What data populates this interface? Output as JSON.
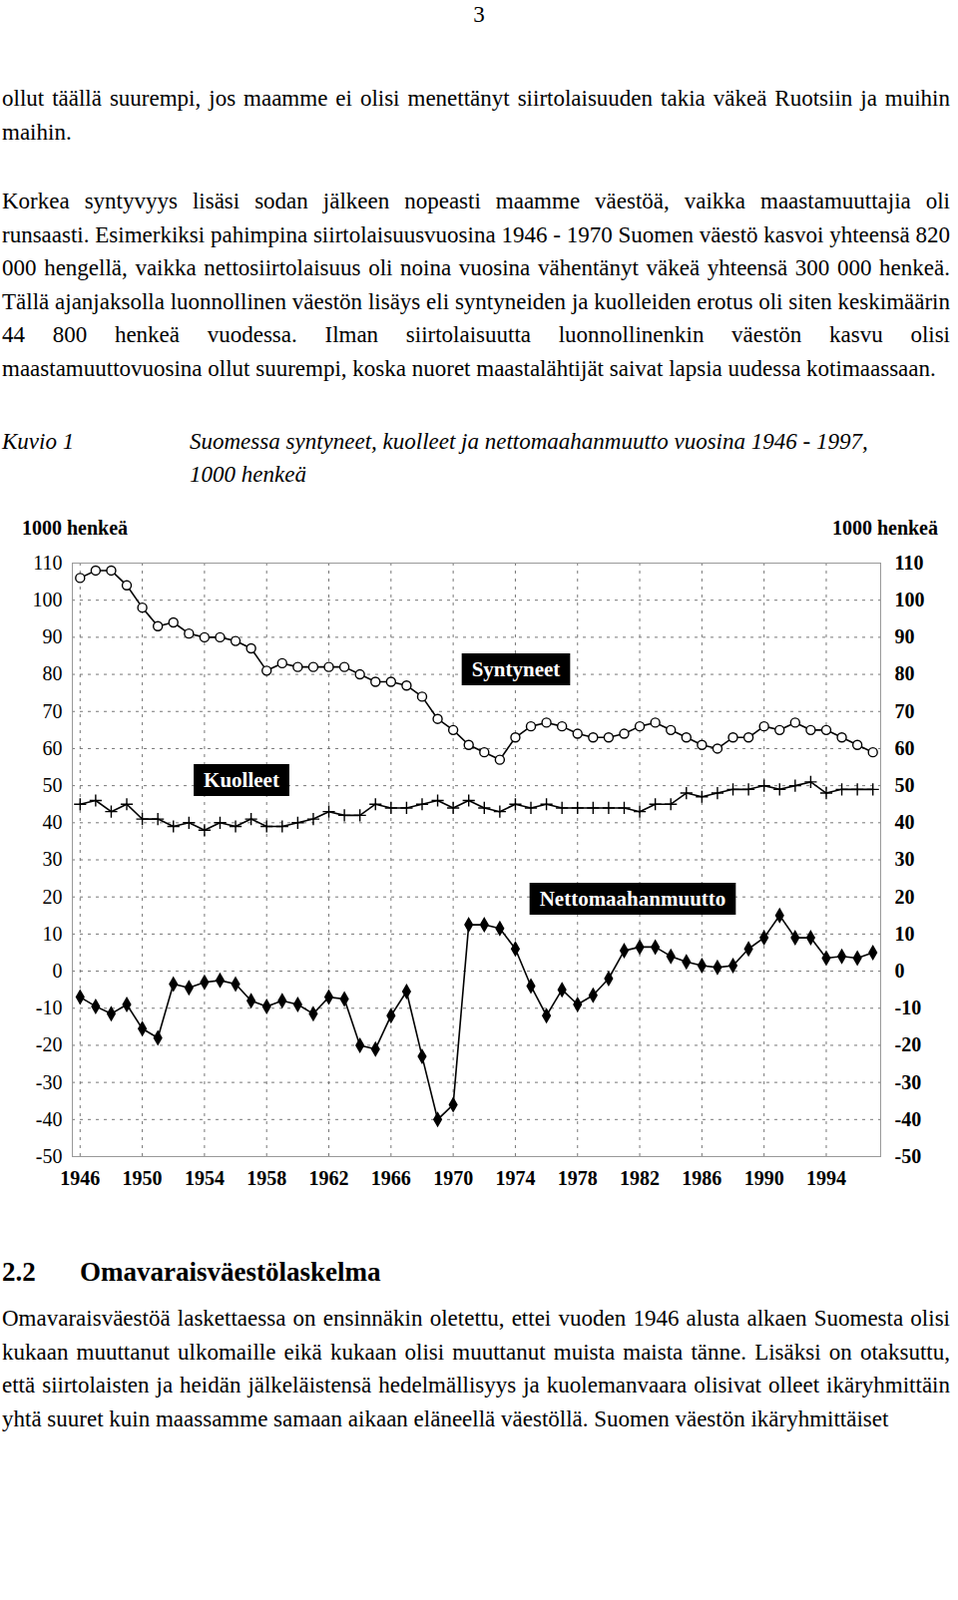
{
  "document": {
    "page_number": "3",
    "paragraphs": [
      "ollut täällä suurempi, jos maamme ei olisi menettänyt siirtolaisuuden takia väkeä Ruotsiin ja muihin maihin.",
      "Korkea syntyvyys lisäsi sodan jälkeen nopeasti maamme väestöä, vaikka maastamuuttajia oli runsaasti. Esimerkiksi pahimpina siirtolaisuusvuosina 1946 - 1970 Suomen väestö kasvoi yhteensä 820 000 hengellä, vaikka nettosiirtolaisuus oli noina vuosina vähentänyt väkeä yhteensä 300 000 henkeä. Tällä ajanjaksolla luonnollinen väestön lisäys eli syntyneiden ja kuolleiden erotus oli siten keskimäärin 44 800 henkeä vuodessa. Ilman siirtolaisuutta luonnollinenkin väestön kasvu olisi maastamuuttovuosina ollut suurempi, koska nuoret maastalähtijät saivat lapsia uudessa kotimaassaan."
    ],
    "figure": {
      "label": "Kuvio 1",
      "caption": "Suomessa syntyneet, kuolleet ja nettomaahanmuutto vuosina 1946 - 1997, 1000 henkeä"
    },
    "section": {
      "number": "2.2",
      "title": "Omavaraisväestölaskelma"
    },
    "paragraphs_after": [
      "Omavaraisväestöä laskettaessa on ensinnäkin oletettu, ettei vuoden 1946 alusta alkaen Suomesta olisi kukaan muuttanut ulkomaille eikä kukaan olisi muuttanut muista maista tänne. Lisäksi on otaksuttu, että siirtolaisten ja heidän jälkeläistensä hedelmällisyys ja kuolemanvaara olisivat olleet ikäryhmittäin yhtä suuret kuin maassamme samaan aikaan eläneellä väestöllä. Suomen väestön ikäryhmittäiset"
    ]
  },
  "chart_data": {
    "type": "line",
    "ylabel": "1000 henkeä",
    "y2label": "1000 henkeä",
    "x": [
      1946,
      1947,
      1948,
      1949,
      1950,
      1951,
      1952,
      1953,
      1954,
      1955,
      1956,
      1957,
      1958,
      1959,
      1960,
      1961,
      1962,
      1963,
      1964,
      1965,
      1966,
      1967,
      1968,
      1969,
      1970,
      1971,
      1972,
      1973,
      1974,
      1975,
      1976,
      1977,
      1978,
      1979,
      1980,
      1981,
      1982,
      1983,
      1984,
      1985,
      1986,
      1987,
      1988,
      1989,
      1990,
      1991,
      1992,
      1993,
      1994,
      1995,
      1996,
      1997
    ],
    "xlim": [
      1945.5,
      1997.5
    ],
    "xticks": [
      1946,
      1950,
      1954,
      1958,
      1962,
      1966,
      1970,
      1974,
      1978,
      1982,
      1986,
      1990,
      1994
    ],
    "ylim": [
      -50,
      110
    ],
    "yticks": [
      -50,
      -40,
      -30,
      -20,
      -10,
      0,
      10,
      20,
      30,
      40,
      50,
      60,
      70,
      80,
      90,
      100,
      110
    ],
    "y2lim": [
      -50,
      110
    ],
    "y2ticks": [
      -50,
      -40,
      -30,
      -20,
      -10,
      0,
      10,
      20,
      30,
      40,
      50,
      60,
      70,
      80,
      90,
      100,
      110
    ],
    "grid": true,
    "series": [
      {
        "name": "Syntyneet",
        "color": "#000000",
        "marker": "open_circle",
        "values": [
          106,
          108,
          108,
          104,
          98,
          93,
          94,
          91,
          90,
          90,
          89,
          87,
          81,
          83,
          82,
          82,
          82,
          82,
          80,
          78,
          78,
          77,
          74,
          68,
          65,
          61,
          59,
          57,
          63,
          66,
          67,
          66,
          64,
          63,
          63,
          64,
          66,
          67,
          65,
          63,
          61,
          60,
          63,
          63,
          66,
          65,
          67,
          65,
          65,
          63,
          61,
          59
        ]
      },
      {
        "name": "Kuolleet",
        "color": "#000000",
        "marker": "plus",
        "values": [
          45,
          46,
          43,
          45,
          41,
          41,
          39,
          40,
          38,
          40,
          39,
          41,
          39,
          39,
          40,
          41,
          43,
          42,
          42,
          45,
          44,
          44,
          45,
          46,
          44,
          46,
          44,
          43,
          45,
          44,
          45,
          44,
          44,
          44,
          44,
          44,
          43,
          45,
          45,
          48,
          47,
          48,
          49,
          49,
          50,
          49,
          50,
          51,
          48,
          49,
          49,
          49
        ]
      },
      {
        "name": "Nettomaahanmuutto",
        "color": "#000000",
        "marker": "diamond",
        "values": [
          -7,
          -9.5,
          -11.5,
          -9,
          -15.5,
          -18,
          -3.5,
          -4.5,
          -3,
          -2.5,
          -3.5,
          -8,
          -9.5,
          -8,
          -9,
          -11.5,
          -7,
          -7.5,
          -20,
          -21,
          -12,
          -5.5,
          -23,
          -40,
          -36,
          12.5,
          12.5,
          11.5,
          6,
          -4,
          -12,
          -5,
          -9,
          -6.5,
          -2,
          5.5,
          6.5,
          6.5,
          4,
          2.5,
          1.5,
          1,
          1.5,
          6,
          9,
          15,
          9,
          9,
          3.5,
          4,
          3.5,
          5
        ]
      }
    ]
  }
}
